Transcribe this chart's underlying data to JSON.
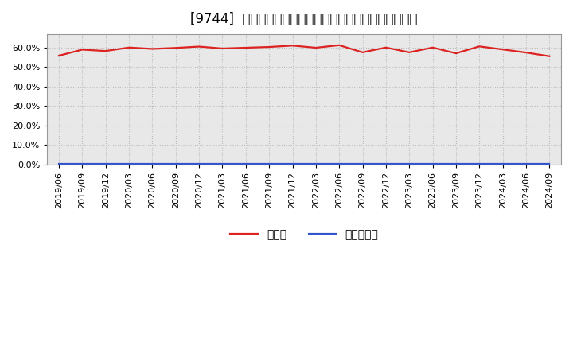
{
  "title": "[9744]  現預金、有利子負債の総資産に対する比率の推移",
  "ylim": [
    0.0,
    0.67
  ],
  "yticks": [
    0.0,
    0.1,
    0.2,
    0.3,
    0.4,
    0.5,
    0.6
  ],
  "dates": [
    "2019/06",
    "2019/09",
    "2019/12",
    "2020/03",
    "2020/06",
    "2020/09",
    "2020/12",
    "2021/03",
    "2021/06",
    "2021/09",
    "2021/12",
    "2022/03",
    "2022/06",
    "2022/09",
    "2022/12",
    "2023/03",
    "2023/06",
    "2023/09",
    "2023/12",
    "2024/03",
    "2024/06",
    "2024/09"
  ],
  "cash_ratio": [
    0.559,
    0.59,
    0.583,
    0.601,
    0.594,
    0.599,
    0.606,
    0.596,
    0.6,
    0.604,
    0.611,
    0.6,
    0.613,
    0.576,
    0.601,
    0.576,
    0.601,
    0.571,
    0.607,
    0.591,
    0.575,
    0.556
  ],
  "debt_ratio": [
    0.001,
    0.001,
    0.001,
    0.001,
    0.001,
    0.001,
    0.001,
    0.001,
    0.001,
    0.001,
    0.001,
    0.001,
    0.001,
    0.001,
    0.001,
    0.001,
    0.001,
    0.001,
    0.001,
    0.001,
    0.001,
    0.001
  ],
  "cash_color": "#dd2222",
  "debt_color": "#3355cc",
  "bg_color": "#ffffff",
  "plot_bg_color": "#e8e8e8",
  "grid_color": "#bbbbbb",
  "legend_cash": "現預金",
  "legend_debt": "有利子負債",
  "title_fontsize": 12,
  "tick_fontsize": 8,
  "legend_fontsize": 10,
  "line_width": 1.6
}
